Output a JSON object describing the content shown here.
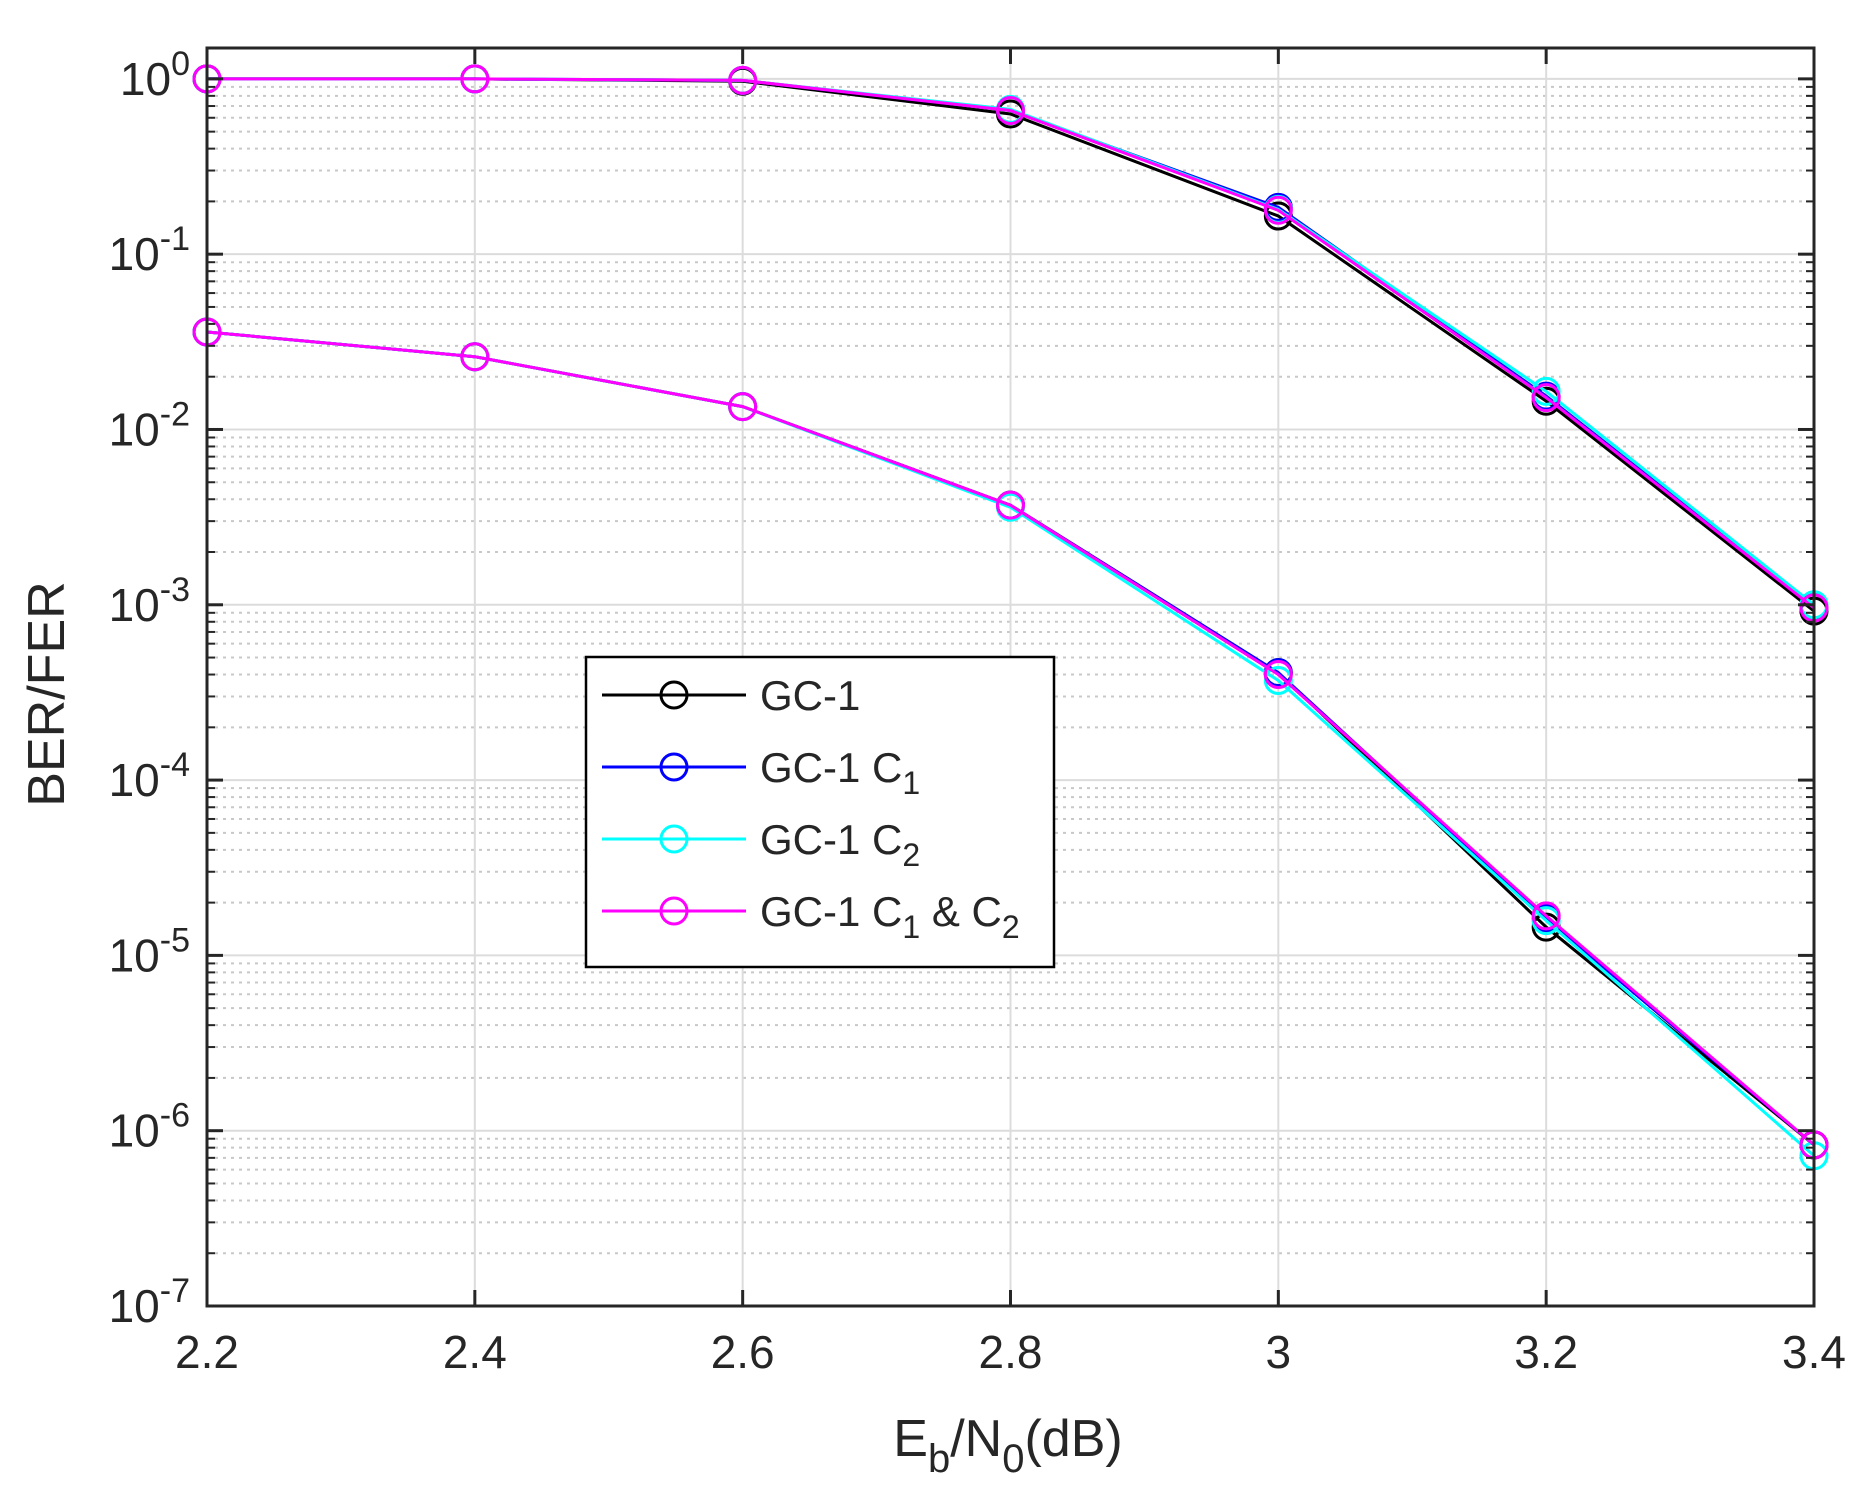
{
  "chart_data": {
    "type": "line",
    "title": "",
    "xlabel": {
      "main": "E",
      "sub1": "b",
      "mid": "/N",
      "sub2": "0",
      "tail": "(dB)"
    },
    "ylabel": "BER/FER",
    "x_scale": "linear",
    "y_scale": "log",
    "xlim": [
      2.2,
      3.4
    ],
    "ylim": [
      1e-07,
      1.5
    ],
    "x_ticks": [
      2.2,
      2.4,
      2.6,
      2.8,
      3.0,
      3.2,
      3.4
    ],
    "x_tick_labels": [
      "2.2",
      "2.4",
      "2.6",
      "2.8",
      "3",
      "3.2",
      "3.4"
    ],
    "y_ticks": [
      {
        "value": 1,
        "base": "10",
        "exp": "0"
      },
      {
        "value": 0.1,
        "base": "10",
        "exp": "-1"
      },
      {
        "value": 0.01,
        "base": "10",
        "exp": "-2"
      },
      {
        "value": 0.001,
        "base": "10",
        "exp": "-3"
      },
      {
        "value": 0.0001,
        "base": "10",
        "exp": "-4"
      },
      {
        "value": 1e-05,
        "base": "10",
        "exp": "-5"
      },
      {
        "value": 1e-06,
        "base": "10",
        "exp": "-6"
      },
      {
        "value": 1e-07,
        "base": "10",
        "exp": "-7"
      }
    ],
    "grid": "major and minor",
    "legend_position": "center-left",
    "x": [
      2.2,
      2.4,
      2.6,
      2.8,
      3.0,
      3.2,
      3.4
    ],
    "series": [
      {
        "name": "GC-1",
        "name_parts": [
          {
            "t": "GC-1"
          }
        ],
        "color": "#000000",
        "marker": "circle",
        "group": "FER",
        "values": [
          1.0,
          1.0,
          0.97,
          0.63,
          0.165,
          0.0145,
          0.00092
        ]
      },
      {
        "name": "GC-1 C_1",
        "name_parts": [
          {
            "t": "GC-1 C"
          },
          {
            "t": "1",
            "sub": true
          }
        ],
        "color": "#0000ff",
        "marker": "circle",
        "group": "FER",
        "values": [
          1.0,
          1.0,
          0.98,
          0.66,
          0.185,
          0.0155,
          0.00097
        ]
      },
      {
        "name": "GC-1 C_2",
        "name_parts": [
          {
            "t": "GC-1 C"
          },
          {
            "t": "2",
            "sub": true
          }
        ],
        "color": "#00ffff",
        "marker": "circle",
        "group": "FER",
        "values": [
          1.0,
          1.0,
          0.98,
          0.67,
          0.18,
          0.0165,
          0.001
        ]
      },
      {
        "name": "GC-1 C_1 & C_2",
        "name_parts": [
          {
            "t": "GC-1 C"
          },
          {
            "t": "1",
            "sub": true
          },
          {
            "t": " & C"
          },
          {
            "t": "2",
            "sub": true
          }
        ],
        "color": "#ff00ff",
        "marker": "circle",
        "group": "FER",
        "values": [
          1.0,
          1.0,
          0.98,
          0.66,
          0.178,
          0.0152,
          0.00096
        ]
      },
      {
        "name": "GC-1",
        "color": "#000000",
        "marker": "circle",
        "group": "BER",
        "values": [
          0.036,
          0.026,
          0.0135,
          0.0037,
          0.00041,
          1.45e-05,
          8.3e-07
        ]
      },
      {
        "name": "GC-1 C_1",
        "color": "#0000ff",
        "marker": "circle",
        "group": "BER",
        "values": [
          0.036,
          0.026,
          0.0135,
          0.0037,
          0.00041,
          1.62e-05,
          8.3e-07
        ]
      },
      {
        "name": "GC-1 C_2",
        "color": "#00ffff",
        "marker": "circle",
        "group": "BER",
        "values": [
          0.036,
          0.026,
          0.0135,
          0.0036,
          0.00037,
          1.58e-05,
          7.2e-07
        ]
      },
      {
        "name": "GC-1 C_1 & C_2",
        "color": "#ff00ff",
        "marker": "circle",
        "group": "BER",
        "values": [
          0.036,
          0.026,
          0.0135,
          0.0037,
          0.0004,
          1.68e-05,
          8.3e-07
        ]
      }
    ]
  }
}
